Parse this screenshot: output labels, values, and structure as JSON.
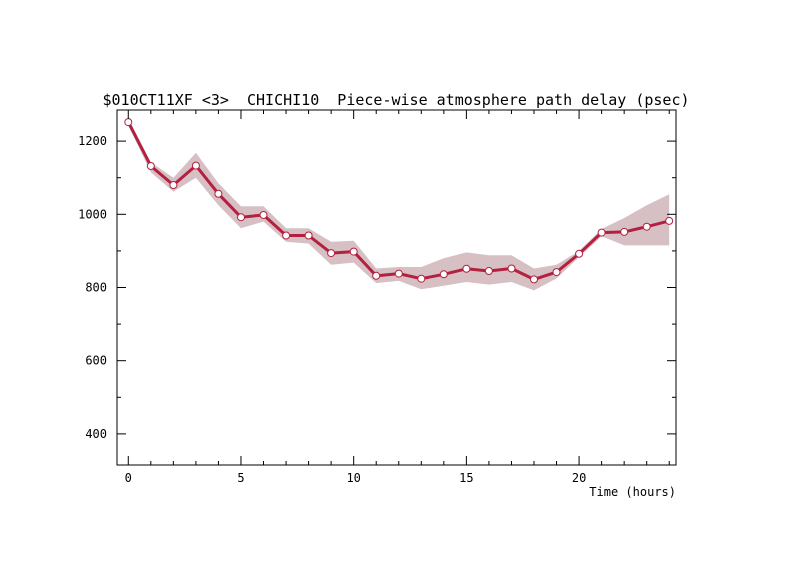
{
  "chart_data": {
    "type": "line",
    "title": "$010CT11XF <3>  CHICHI10  Piece-wise atmosphere path delay (psec)",
    "xlabel": "Time (hours)",
    "ylabel": "",
    "xlim": [
      -0.5,
      24.3
    ],
    "ylim": [
      315,
      1285
    ],
    "x_ticks": [
      0,
      5,
      10,
      15,
      20
    ],
    "y_ticks": [
      400,
      600,
      800,
      1000,
      1200
    ],
    "x_minor_step": 1,
    "y_minor_step": 100,
    "grid": false,
    "legend": "none",
    "series": [
      {
        "x": [
          0,
          1,
          2,
          3,
          4,
          5,
          6,
          7,
          8,
          9,
          10,
          11,
          12,
          13,
          14,
          15,
          16,
          17,
          18,
          19,
          20,
          21,
          22,
          23,
          24
        ],
        "values": [
          1252,
          1132,
          1080,
          1133,
          1056,
          992,
          998,
          942,
          942,
          894,
          898,
          832,
          838,
          824,
          836,
          851,
          845,
          852,
          822,
          842,
          892,
          950,
          952,
          966,
          982
        ],
        "upper": [
          1262,
          1142,
          1100,
          1168,
          1085,
          1022,
          1022,
          962,
          962,
          925,
          928,
          852,
          856,
          856,
          880,
          896,
          888,
          888,
          852,
          862,
          900,
          960,
          990,
          1025,
          1055
        ],
        "lower": [
          1242,
          1115,
          1062,
          1100,
          1025,
          962,
          980,
          925,
          920,
          862,
          868,
          812,
          818,
          795,
          805,
          815,
          808,
          815,
          792,
          825,
          883,
          940,
          915,
          915,
          915
        ]
      }
    ],
    "colors": {
      "line": "#b42040",
      "band": "#d6c0c4",
      "marker_fill": "#ffffff",
      "axis": "#000000"
    }
  }
}
